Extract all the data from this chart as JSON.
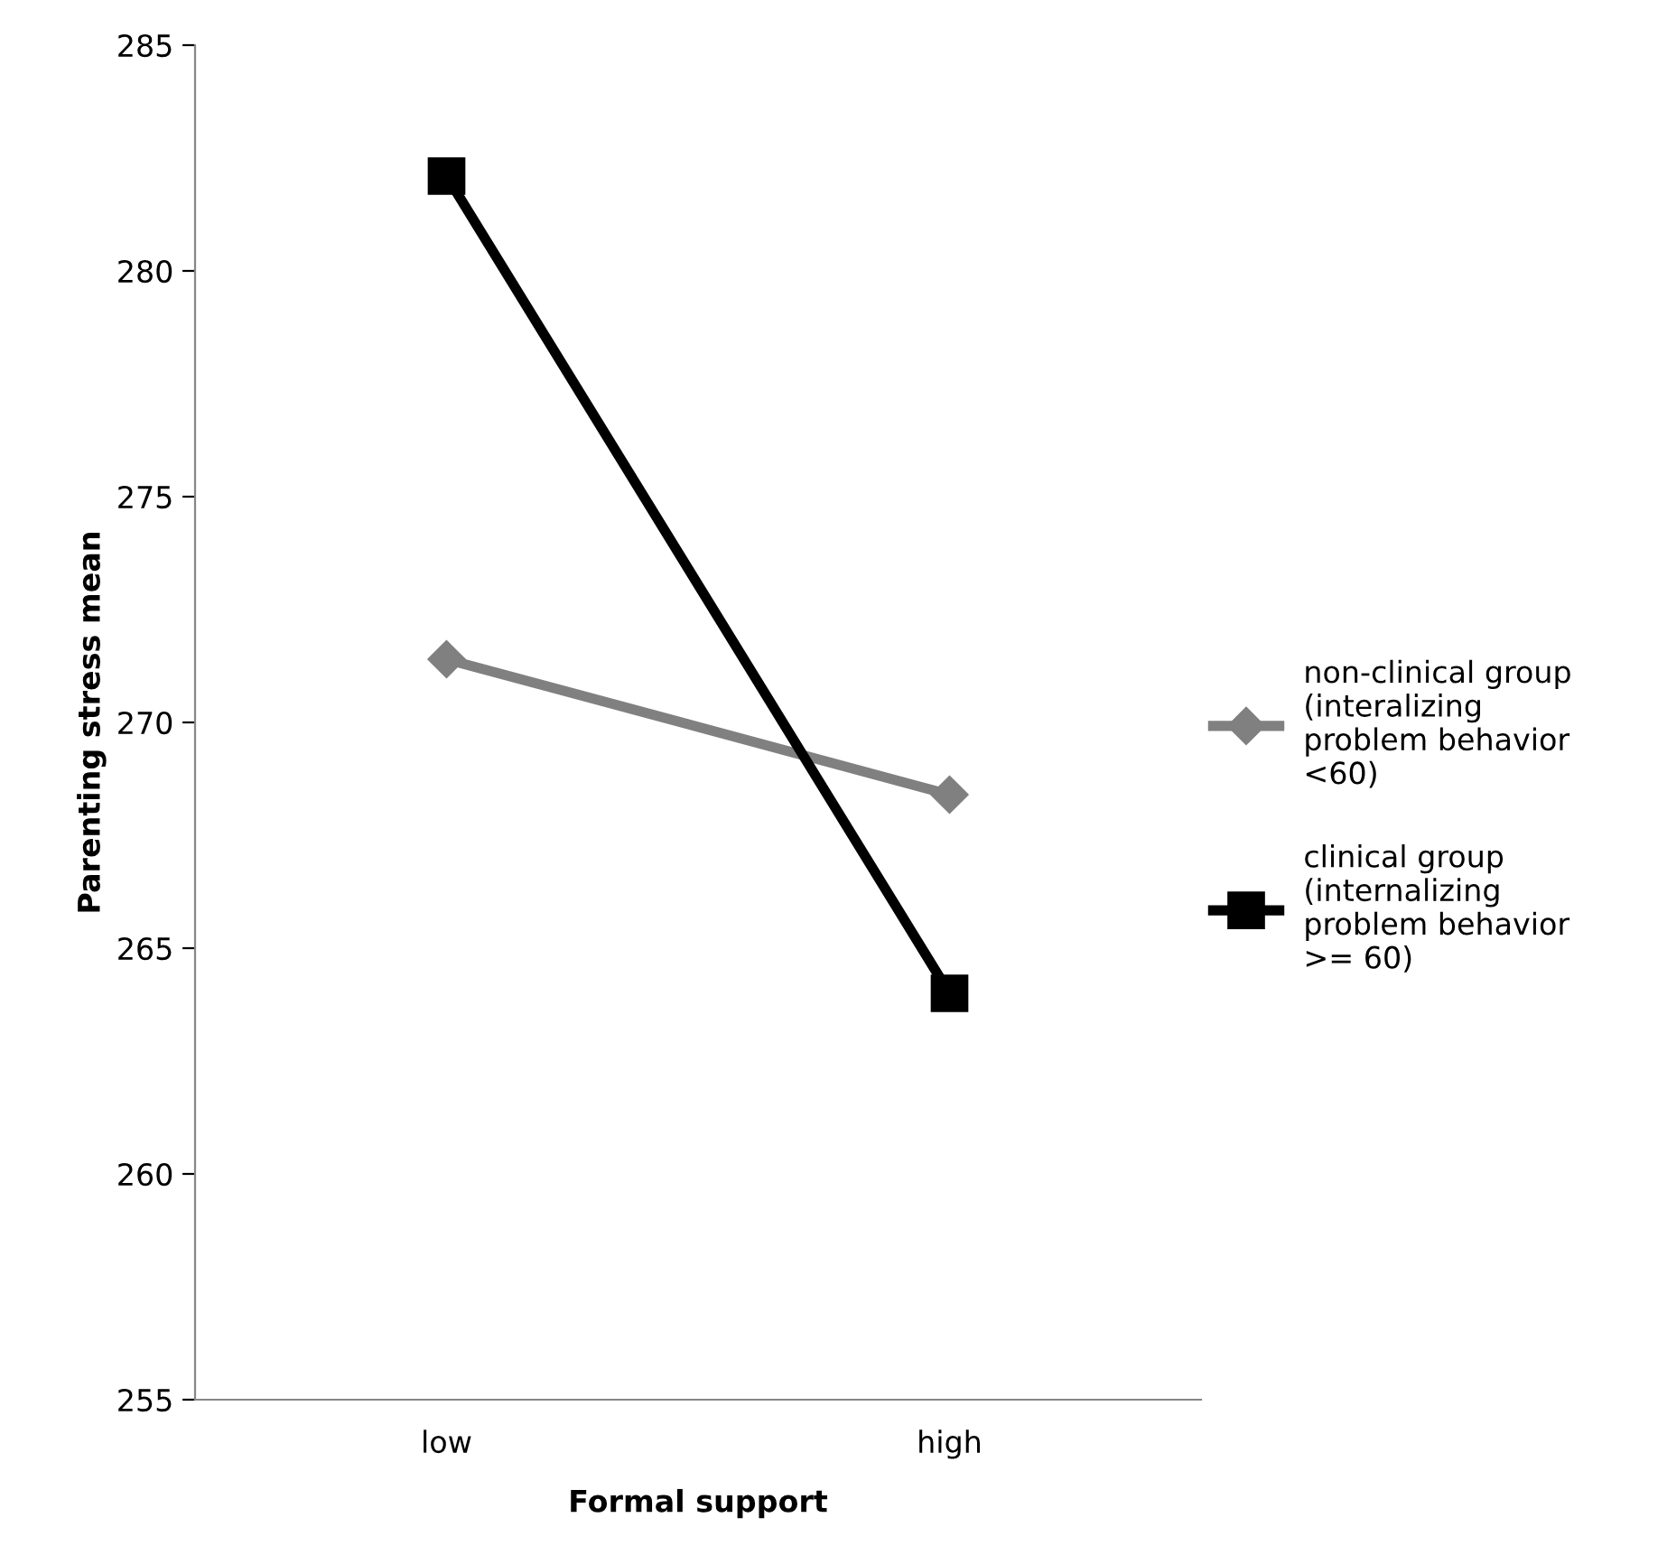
{
  "chart_data": {
    "type": "line",
    "xlabel": "Formal support",
    "ylabel": "Parenting stress mean",
    "categories": [
      "low",
      "high"
    ],
    "series": [
      {
        "name": "non-clinical group\n(interalizing\nproblem behavior\n<60)",
        "color": "#808080",
        "marker": "diamond",
        "values": [
          271.4,
          268.4
        ]
      },
      {
        "name": "clinical group\n(internalizing\nproblem behavior\n>= 60)",
        "color": "#000000",
        "marker": "square",
        "values": [
          282.1,
          264.0
        ]
      }
    ],
    "ylim": [
      255,
      285
    ],
    "yticks": [
      255,
      260,
      265,
      270,
      275,
      280,
      285
    ],
    "grid": false,
    "legend": "right",
    "line_style": "solid"
  }
}
